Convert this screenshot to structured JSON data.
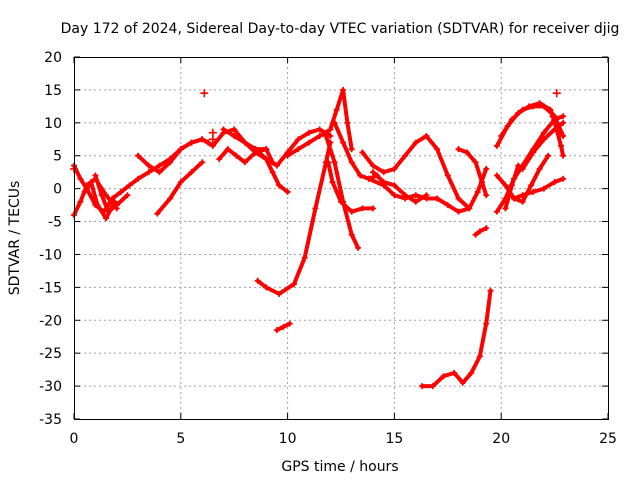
{
  "chart_data": {
    "type": "scatter",
    "title": "Day 172 of 2024, Sidereal Day-to-day VTEC variation (SDTVAR) for receiver djig",
    "xlabel": "GPS time / hours",
    "ylabel": "SDTVAR / TECUs",
    "xlim": [
      0,
      25
    ],
    "ylim": [
      -35,
      20
    ],
    "xticks": [
      "0",
      "5",
      "10",
      "15",
      "20",
      "25"
    ],
    "yticks": [
      "20",
      "15",
      "10",
      "5",
      "0",
      "-5",
      "-10",
      "-15",
      "-20",
      "-25",
      "-30",
      "-35"
    ],
    "grid": true,
    "color": "#ff0000",
    "series": [
      {
        "name": "trace-1",
        "x": [
          0,
          0.3,
          0.6,
          1.0,
          1.4,
          1.8,
          2.2,
          2.6,
          3.0,
          3.5,
          4.0,
          4.5,
          5.0,
          5.5,
          6.0,
          6.3
        ],
        "y": [
          3.5,
          1.5,
          0,
          -2.5,
          -3.5,
          -1.5,
          -0.5,
          0.5,
          1.5,
          2.5,
          3.5,
          4.5,
          6.0,
          7.0,
          7.5,
          7.0
        ]
      },
      {
        "name": "trace-2",
        "x": [
          0,
          0.3,
          0.6,
          1.0,
          1.5,
          2.0
        ],
        "y": [
          -4.0,
          -2.0,
          0.5,
          1.5,
          -1.0,
          -3.0
        ]
      },
      {
        "name": "trace-3",
        "x": [
          0.5,
          0.8,
          1.1,
          1.5,
          1.9
        ],
        "y": [
          -0.5,
          1.0,
          -2.5,
          -4.5,
          -2.0
        ]
      },
      {
        "name": "trace-4",
        "x": [
          1.0,
          1.3,
          1.6,
          2.0,
          2.5
        ],
        "y": [
          2.0,
          -1.0,
          -3.5,
          -2.5,
          -1.0
        ]
      },
      {
        "name": "trace-5",
        "x": [
          3.0,
          3.5,
          4.0,
          4.5,
          5.0,
          5.5,
          6.0,
          6.5,
          7.0,
          7.5,
          8.0,
          8.5,
          9.0
        ],
        "y": [
          5.0,
          3.5,
          2.5,
          4.0,
          6.0,
          7.0,
          7.5,
          6.5,
          8.5,
          9.0,
          7.0,
          6.0,
          6.0
        ]
      },
      {
        "name": "trace-6",
        "x": [
          3.9,
          4.5,
          5.0,
          5.5,
          6.0
        ],
        "y": [
          -3.8,
          -1.5,
          1.0,
          2.5,
          4.0
        ]
      },
      {
        "name": "trace-7",
        "x": [
          6.8,
          7.2,
          7.6,
          8.0,
          8.5,
          9.0,
          9.3
        ],
        "y": [
          4.5,
          6.0,
          5.0,
          4.0,
          5.5,
          6.0,
          4.0
        ]
      },
      {
        "name": "trace-8",
        "x": [
          7.0,
          7.5,
          8.0,
          8.5,
          9.0,
          9.5,
          10.0,
          10.5,
          11.0,
          11.5,
          12.0
        ],
        "y": [
          9.0,
          8.0,
          7.0,
          5.5,
          4.5,
          3.5,
          5.5,
          7.5,
          8.5,
          9.0,
          8.0
        ]
      },
      {
        "name": "trace-9",
        "x": [
          8.5,
          9.0,
          9.3,
          9.6,
          10.0
        ],
        "y": [
          6.0,
          4.5,
          2.5,
          0.5,
          -0.5
        ]
      },
      {
        "name": "trace-10",
        "x": [
          8.6,
          9.0,
          9.6,
          10.3,
          10.8,
          11.3,
          11.8,
          12.0
        ],
        "y": [
          -14.0,
          -15.0,
          -16.0,
          -14.5,
          -10.5,
          -3.0,
          4.0,
          7.0
        ]
      },
      {
        "name": "trace-11",
        "x": [
          9.5,
          9.8,
          10.1
        ],
        "y": [
          -21.5,
          -21.0,
          -20.5
        ]
      },
      {
        "name": "trace-12",
        "x": [
          10.0,
          10.5,
          11.0,
          11.5,
          11.8,
          12.0,
          12.3,
          12.6,
          12.8,
          13.0
        ],
        "y": [
          5.0,
          6.0,
          7.0,
          8.0,
          8.5,
          9.0,
          12.0,
          15.0,
          10.0,
          6.0
        ]
      },
      {
        "name": "trace-13",
        "x": [
          11.9,
          12.1,
          12.5,
          13.0,
          13.5,
          14.0
        ],
        "y": [
          4.0,
          1.0,
          -2.0,
          -3.5,
          -3.0,
          -3.0
        ]
      },
      {
        "name": "trace-14",
        "x": [
          11.8,
          12.2,
          12.6,
          13.0,
          13.3
        ],
        "y": [
          8.0,
          4.0,
          -2.0,
          -7.0,
          -9.0
        ]
      },
      {
        "name": "trace-15",
        "x": [
          12.2,
          12.6,
          13.0,
          13.4,
          13.8,
          14.2
        ],
        "y": [
          10.0,
          7.0,
          4.0,
          2.0,
          1.5,
          2.0
        ]
      },
      {
        "name": "trace-16",
        "x": [
          13.5,
          14.0,
          14.5,
          15.0,
          15.5,
          16.0,
          16.5,
          17.0,
          17.5,
          18.0,
          18.5
        ],
        "y": [
          5.5,
          3.5,
          2.5,
          3.0,
          5.0,
          7.0,
          8.0,
          6.0,
          2.0,
          -1.5,
          -3.0
        ]
      },
      {
        "name": "trace-17",
        "x": [
          13.8,
          14.5,
          15.0,
          15.5,
          16.0,
          16.5,
          17.0
        ],
        "y": [
          1.5,
          0.5,
          -1.0,
          -1.5,
          -1.0,
          -1.5,
          -1.5
        ]
      },
      {
        "name": "trace-18",
        "x": [
          14.0,
          14.5,
          15.0,
          15.5,
          16.0,
          16.5
        ],
        "y": [
          2.5,
          1.0,
          0.5,
          -1.0,
          -2.0,
          -1.0
        ]
      },
      {
        "name": "trace-19",
        "x": [
          17.0,
          17.5,
          18.0,
          18.5,
          18.9,
          19.3
        ],
        "y": [
          -1.5,
          -2.5,
          -3.5,
          -3.0,
          -0.5,
          3.0
        ]
      },
      {
        "name": "trace-20",
        "x": [
          18.0,
          18.4,
          18.8,
          19.1,
          19.3
        ],
        "y": [
          6.0,
          5.5,
          4.0,
          1.0,
          -1.0
        ]
      },
      {
        "name": "trace-21",
        "x": [
          18.8,
          19.0,
          19.3
        ],
        "y": [
          -7.0,
          -6.5,
          -6.0
        ]
      },
      {
        "name": "trace-22",
        "x": [
          16.3,
          16.8,
          17.3,
          17.8,
          18.2,
          18.6,
          19.0,
          19.3,
          19.5
        ],
        "y": [
          -30.0,
          -30.0,
          -28.5,
          -28.0,
          -29.5,
          -28.0,
          -25.5,
          -20.5,
          -15.5
        ]
      },
      {
        "name": "trace-23",
        "x": [
          19.8,
          20.3,
          20.8,
          21.3,
          21.8,
          22.3,
          22.8
        ],
        "y": [
          6.5,
          9.5,
          11.5,
          12.5,
          13.0,
          12.0,
          8.5
        ]
      },
      {
        "name": "trace-24",
        "x": [
          19.8,
          20.2,
          20.6,
          21.0,
          21.5,
          22.0,
          22.5,
          22.9
        ],
        "y": [
          -3.5,
          -1.5,
          1.5,
          3.5,
          6.0,
          8.5,
          10.5,
          11.0
        ]
      },
      {
        "name": "trace-25",
        "x": [
          19.8,
          20.2,
          20.6,
          21.0,
          21.4,
          21.8,
          22.2
        ],
        "y": [
          2.0,
          0.5,
          -1.5,
          -2.0,
          0.5,
          3.0,
          5.0
        ]
      },
      {
        "name": "trace-26",
        "x": [
          20.2,
          20.5,
          20.8,
          21.0,
          21.5,
          22.0,
          22.5,
          22.9
        ],
        "y": [
          -3.0,
          0.5,
          3.5,
          3.0,
          5.5,
          7.5,
          9.0,
          10.0
        ]
      },
      {
        "name": "trace-27",
        "x": [
          20.0,
          20.5,
          21.0,
          21.5,
          22.0,
          22.5,
          22.9
        ],
        "y": [
          8.0,
          10.5,
          12.0,
          12.5,
          12.5,
          11.0,
          8.0
        ]
      },
      {
        "name": "trace-28",
        "x": [
          20.6,
          21.0,
          21.5,
          22.0,
          22.5,
          22.9
        ],
        "y": [
          -1.5,
          -1.0,
          -0.5,
          0.0,
          1.0,
          1.5
        ]
      },
      {
        "name": "trace-29",
        "x": [
          22.4,
          22.6,
          22.8,
          22.9
        ],
        "y": [
          11.0,
          9.0,
          6.5,
          5.0
        ]
      }
    ],
    "markers": [
      {
        "x": 6.1,
        "y": 14.5
      },
      {
        "x": 6.5,
        "y": 8.5
      },
      {
        "x": 6.5,
        "y": 7.5
      },
      {
        "x": 22.6,
        "y": 14.5
      },
      {
        "x": 0.0,
        "y": 3.0
      }
    ]
  }
}
